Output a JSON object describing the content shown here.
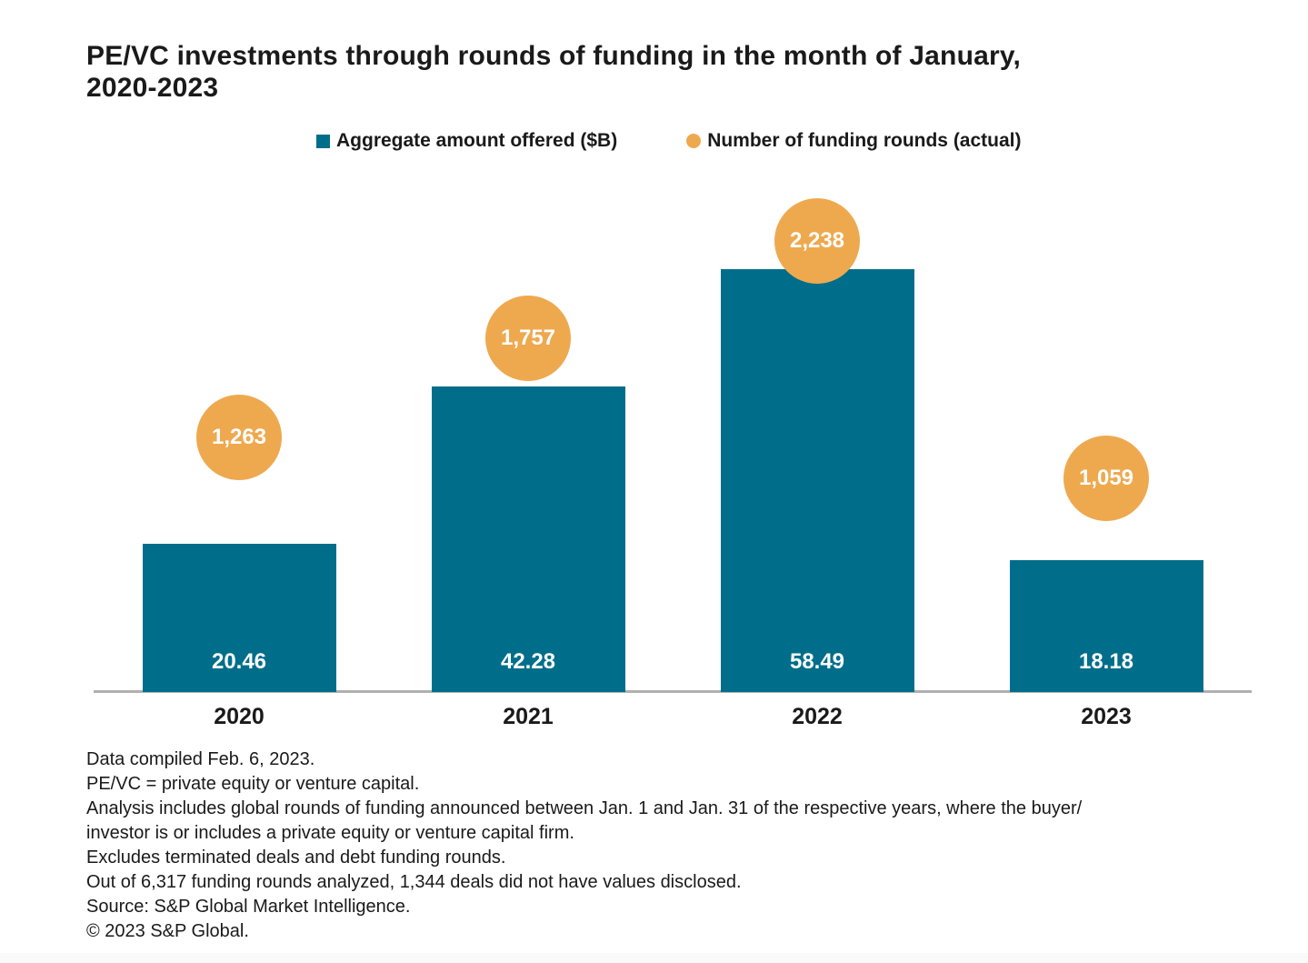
{
  "page": {
    "title_lines": [
      "PE/VC investments through rounds of funding in the month of January,",
      "2020-2023"
    ],
    "footnotes": [
      "Data compiled Feb. 6, 2023.",
      "PE/VC = private equity or venture capital.",
      "Analysis includes global rounds of funding announced between Jan. 1 and Jan. 31 of the respective years, where the buyer/",
      "investor is or includes a private equity or venture capital firm.",
      "Excludes terminated deals and debt funding rounds.",
      "Out of 6,317 funding rounds analyzed, 1,344 deals did not have values disclosed.",
      "Source: S&P Global Market Intelligence.",
      "© 2023 S&P Global."
    ]
  },
  "legend": {
    "items": [
      {
        "label": "Aggregate amount offered ($B)",
        "marker": "square",
        "color": "#006E8A"
      },
      {
        "label": "Number of funding rounds (actual)",
        "marker": "circle",
        "color": "#EEA94F"
      }
    ]
  },
  "colors": {
    "bar_teal": "#006E8A",
    "circle_orange": "#EEA94F",
    "axis_gray": "#b0b0b0",
    "text_dark": "#1a1a1a",
    "label_white": "#ffffff"
  },
  "chart_data": {
    "type": "bar",
    "title": "PE/VC investments through rounds of funding in the month of January, 2020-2023",
    "categories": [
      "2020",
      "2021",
      "2022",
      "2023"
    ],
    "series": [
      {
        "name": "Aggregate amount offered ($B)",
        "type": "bar",
        "color": "#006E8A",
        "values": [
          20.46,
          42.28,
          58.49,
          18.18
        ],
        "labels": [
          "20.46",
          "42.28",
          "58.49",
          "18.18"
        ]
      },
      {
        "name": "Number of funding rounds (actual)",
        "type": "point",
        "color": "#EEA94F",
        "values": [
          1263,
          1757,
          2238,
          1059
        ],
        "labels": [
          "1,263",
          "1,757",
          "2,238",
          "1,059"
        ]
      }
    ],
    "xlabel": "",
    "ylabel": "",
    "ylim_bars": [
      0,
      58.49
    ],
    "ylim_points": [
      0,
      2238
    ],
    "grid": false,
    "legend_position": "top",
    "value_labels_position": "inside-bottom-of-bar"
  }
}
